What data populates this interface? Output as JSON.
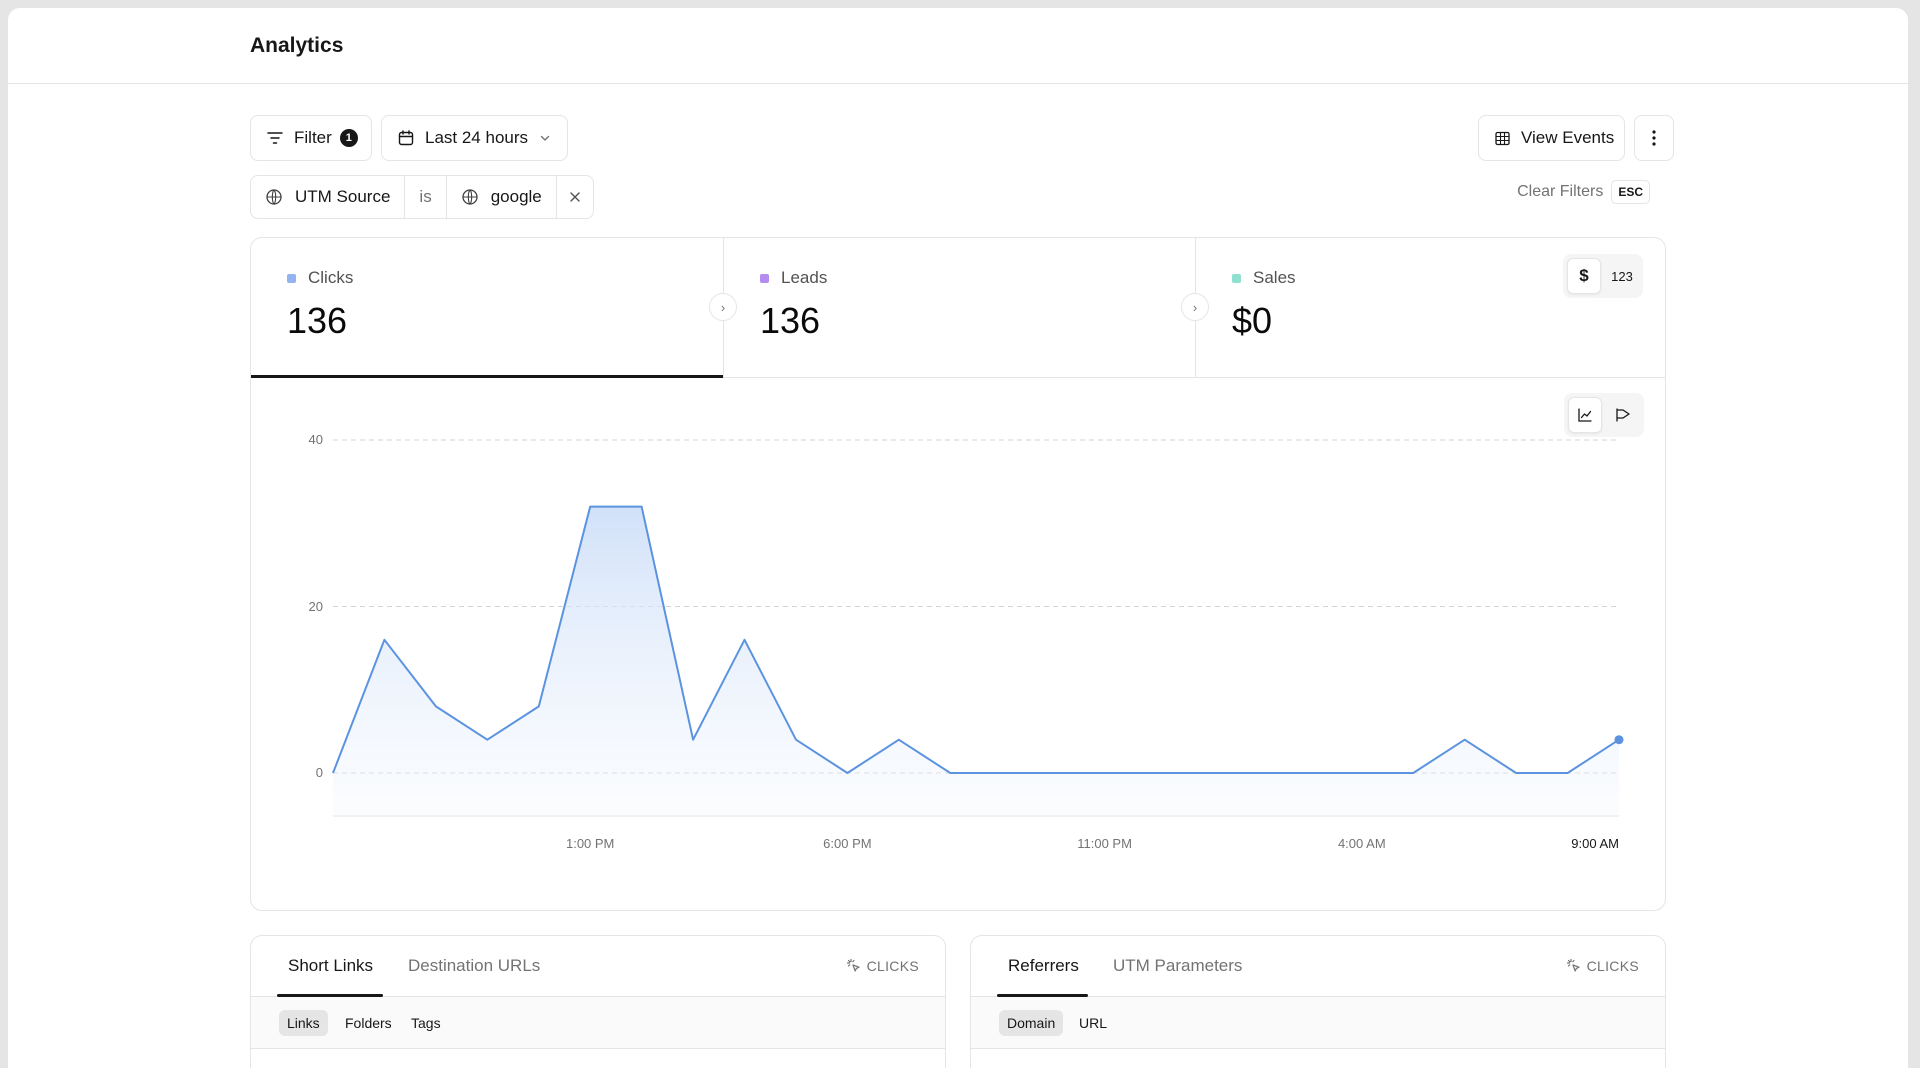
{
  "page": {
    "title": "Analytics"
  },
  "toolbar": {
    "filter_label": "Filter",
    "filter_count": "1",
    "date_range": "Last 24 hours",
    "view_events_label": "View Events"
  },
  "active_filter": {
    "field": "UTM Source",
    "operator": "is",
    "value": "google"
  },
  "clear_filters": {
    "label": "Clear Filters",
    "shortcut": "ESC"
  },
  "metrics": [
    {
      "label": "Clicks",
      "value": "136",
      "color": "#93b4f0"
    },
    {
      "label": "Leads",
      "value": "136",
      "color": "#b58cf0"
    },
    {
      "label": "Sales",
      "value": "$0",
      "color": "#8fe0cf"
    }
  ],
  "unit_toggle": {
    "currency": "$",
    "count": "123"
  },
  "chart_data": {
    "type": "area",
    "x": [
      "",
      "",
      "",
      "",
      "",
      "1:00 PM",
      "",
      "",
      "",
      "",
      "6:00 PM",
      "",
      "",
      "",
      "",
      "11:00 PM",
      "",
      "",
      "",
      "",
      "4:00 AM",
      "",
      "",
      "",
      "",
      "9:00 AM"
    ],
    "y_ticks": [
      0,
      20,
      40
    ],
    "x_tick_labels": [
      "1:00 PM",
      "6:00 PM",
      "11:00 PM",
      "4:00 AM",
      "9:00 AM"
    ],
    "series": [
      {
        "values": [
          0,
          16,
          8,
          4,
          8,
          32,
          32,
          4,
          16,
          4,
          0,
          4,
          0,
          0,
          0,
          0,
          0,
          0,
          0,
          0,
          0,
          0,
          4,
          0,
          0,
          4
        ]
      }
    ],
    "ylim": [
      -5,
      40
    ],
    "grid": true,
    "color": "#5b93e0"
  },
  "panels": {
    "left": {
      "tabs": [
        "Short Links",
        "Destination URLs"
      ],
      "metric_label": "CLICKS",
      "sub_tabs": [
        "Links",
        "Folders",
        "Tags"
      ]
    },
    "right": {
      "tabs": [
        "Referrers",
        "UTM Parameters"
      ],
      "metric_label": "CLICKS",
      "sub_tabs": [
        "Domain",
        "URL"
      ]
    }
  }
}
